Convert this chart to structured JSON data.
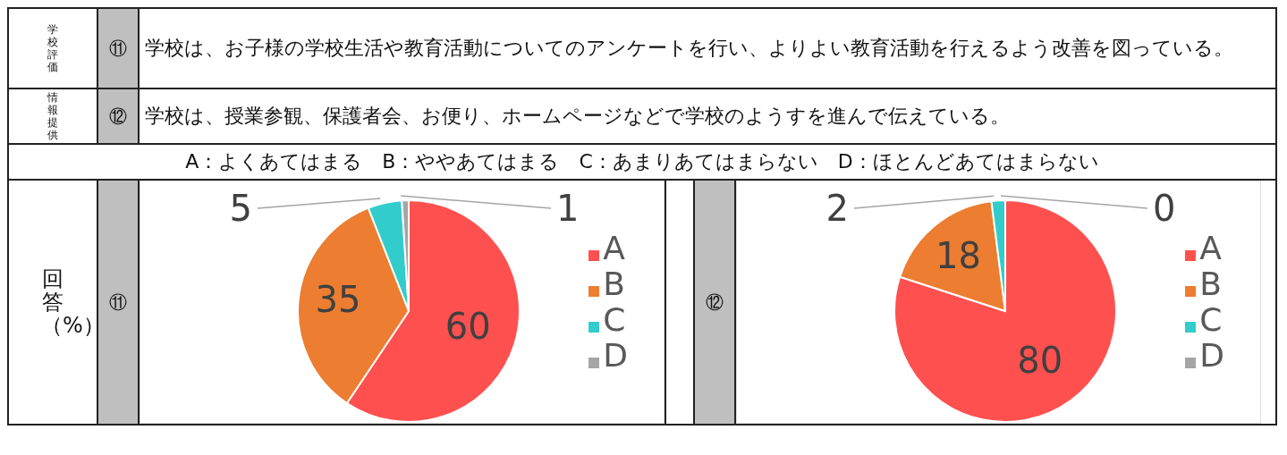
{
  "chart_data": [
    {
      "type": "other",
      "annotations": [
        "学校評価",
        "⑪",
        "学校は、お子様の学校生活や教育活動についてのアンケートを行い、よりよい教育活動を行えるよう改善を図っている。",
        "情報提供",
        "⑫",
        "学校は、授業参観、保護者会、お便り、ホームページなどで学校のようすを進んで伝えている。",
        "A：よくあてはまる　B：ややあてはまる　C：あまりあてはまらない　D：ほとんどあてはまらない",
        "回答（%）"
      ]
    },
    {
      "type": "pie",
      "title": "⑪",
      "categories": [
        "A",
        "B",
        "C",
        "D"
      ],
      "values": [
        60,
        35,
        5,
        1
      ],
      "colors": [
        "#ff5050",
        "#ed7d31",
        "#33cccc",
        "#a5a5a5"
      ],
      "data_labels": true,
      "legend": "right"
    },
    {
      "type": "pie",
      "title": "⑫",
      "categories": [
        "A",
        "B",
        "C",
        "D"
      ],
      "values": [
        80,
        18,
        2,
        0
      ],
      "value_labels": [
        "80",
        "18",
        "2",
        "0"
      ],
      "colors": [
        "#ff5050",
        "#ed7d31",
        "#33cccc",
        "#a5a5a5"
      ],
      "legend": "right"
    }
  ]
}
